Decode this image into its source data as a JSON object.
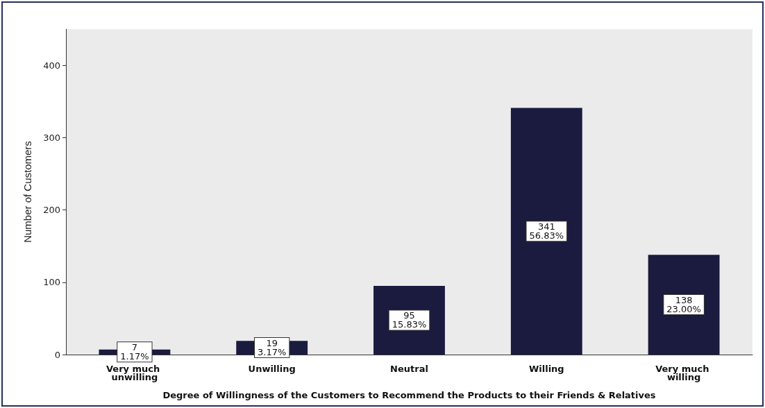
{
  "chart_data": {
    "type": "bar",
    "xlabel": "Degree of Willingness of the Customers to Recommend the Products to their Friends & Relatives",
    "ylabel": "Number of Customers",
    "categories": [
      "Very much unwilling",
      "Unwilling",
      "Neutral",
      "Willing",
      "Very much willing"
    ],
    "values": [
      7,
      19,
      95,
      341,
      138
    ],
    "value_labels": [
      "7\n1.17%",
      "19\n3.17%",
      "95\n15.83%",
      "341\n56.83%",
      "138\n23.00%"
    ],
    "color": "#1b1b40",
    "ylim": [
      0,
      450
    ],
    "yticks": [
      0,
      100,
      200,
      300,
      400
    ],
    "grid": false
  }
}
